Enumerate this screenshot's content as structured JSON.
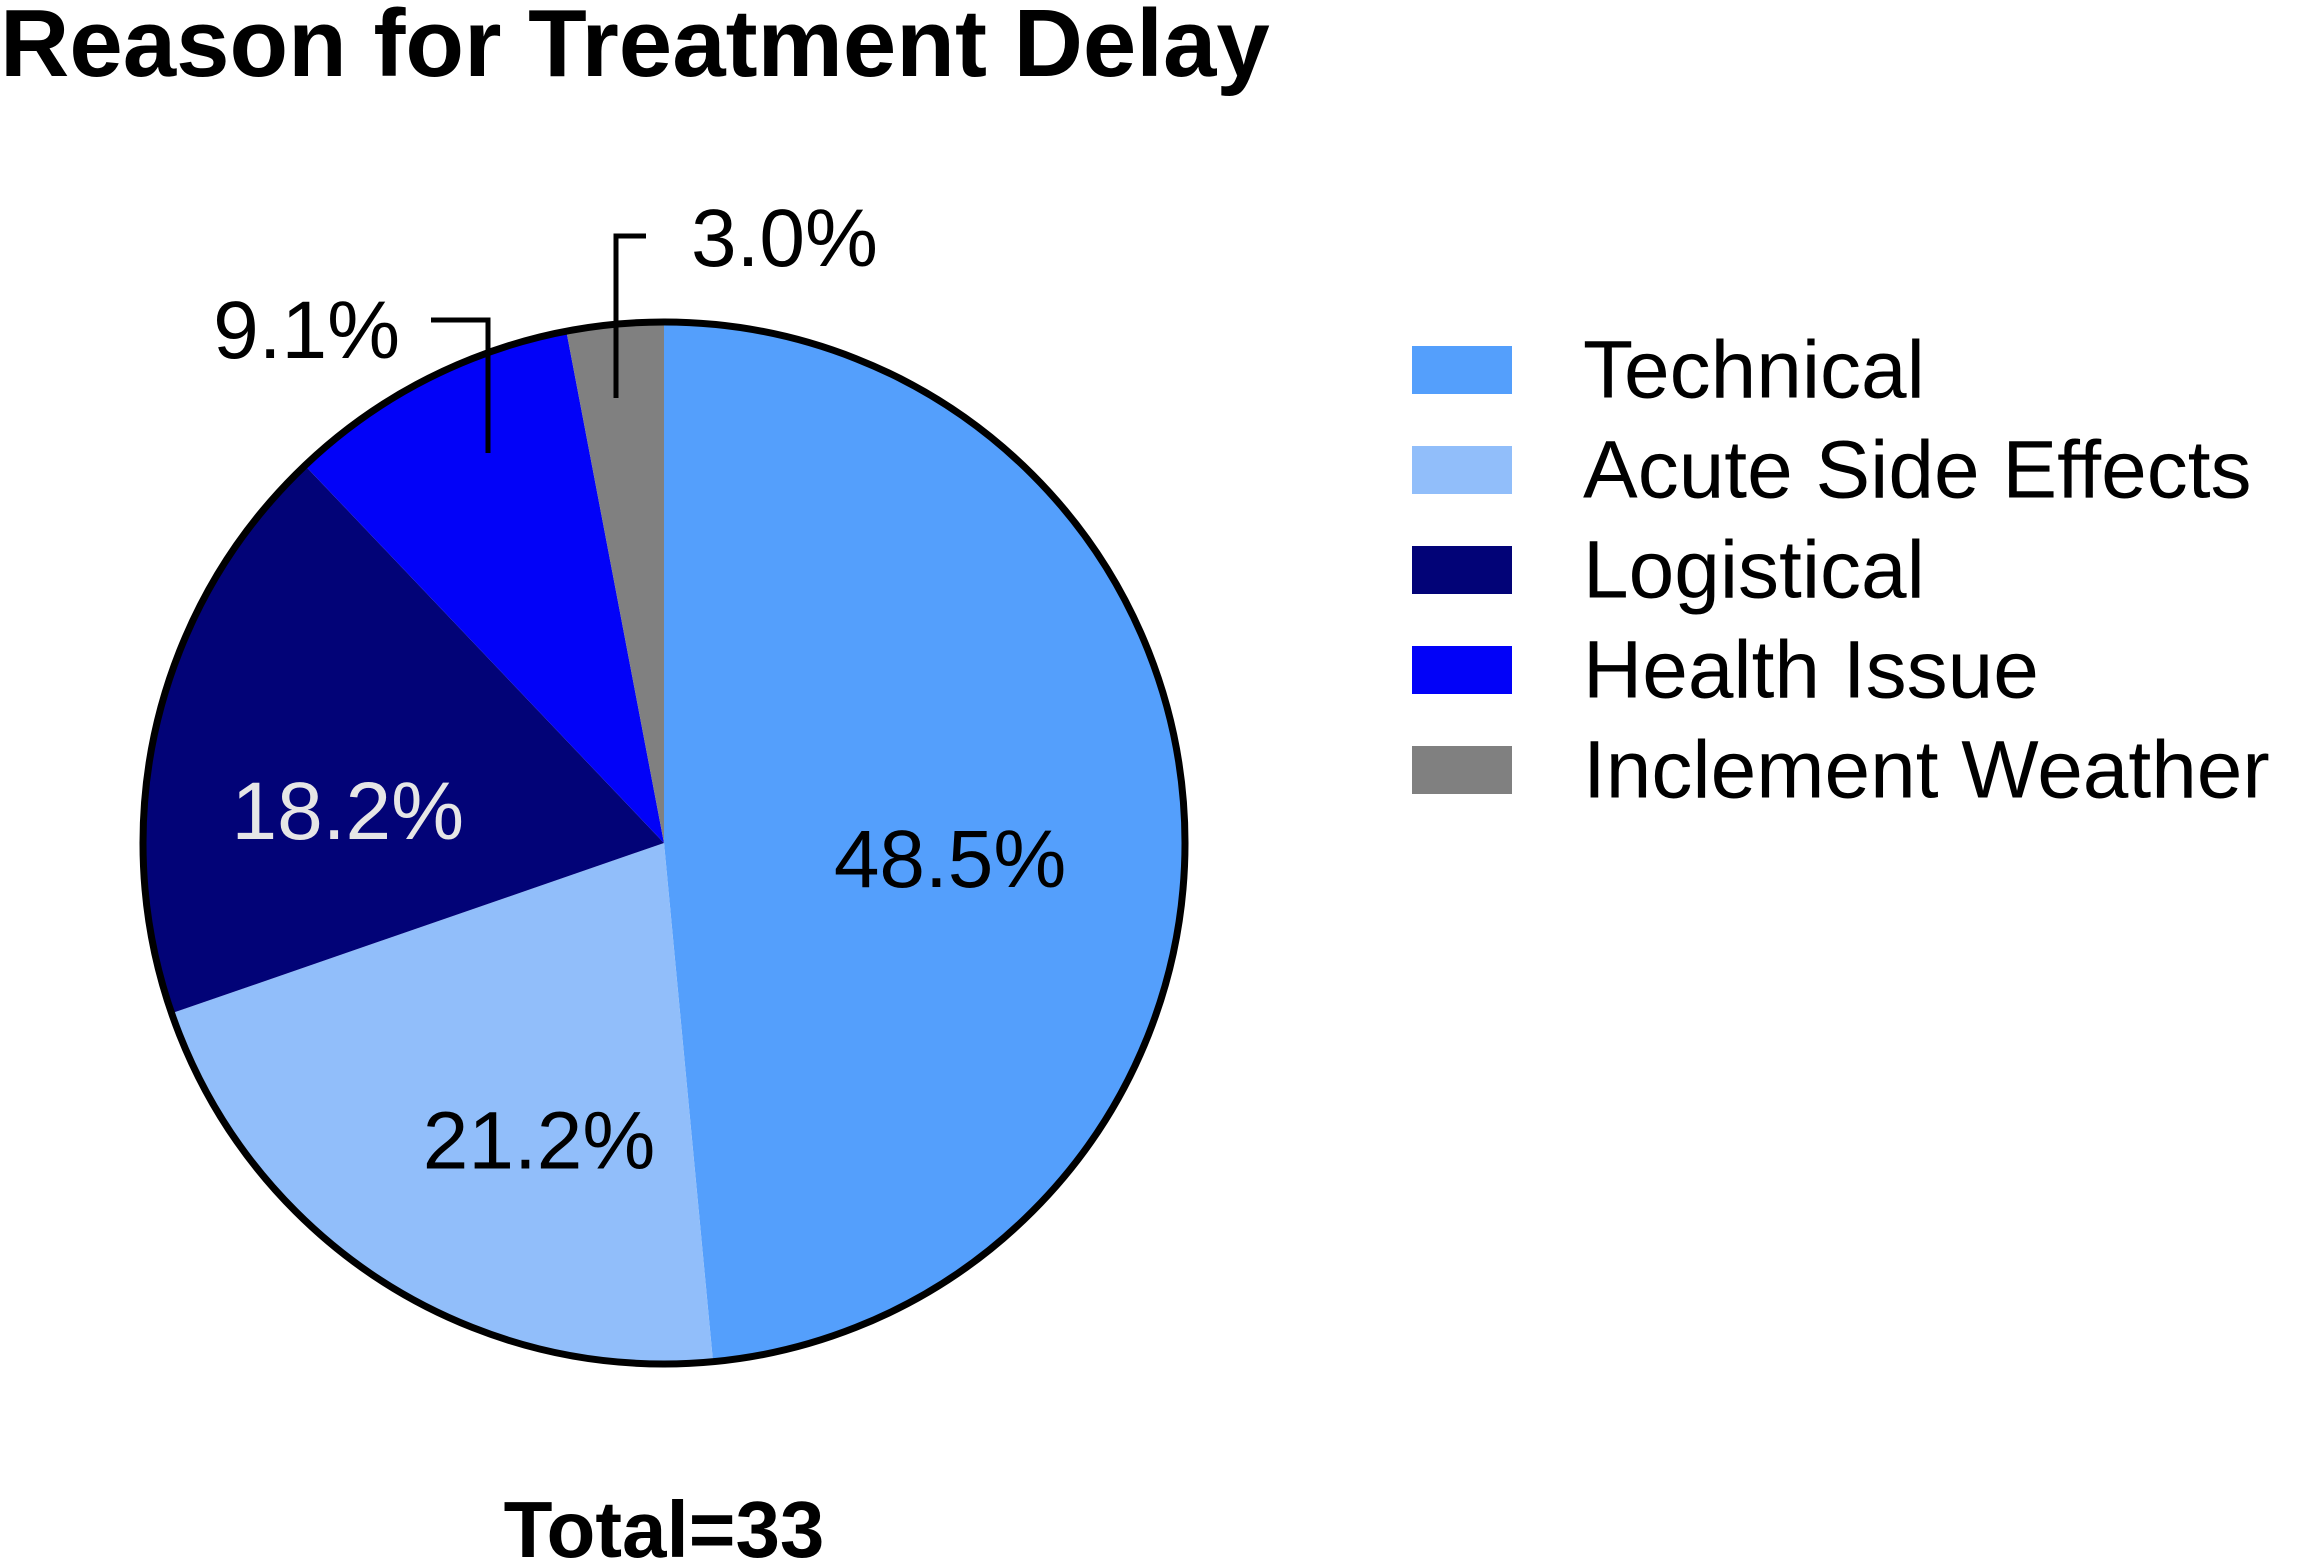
{
  "chart_data": {
    "type": "pie",
    "title": "Reason for Treatment Delay",
    "footnote": "Total=33",
    "categories": [
      "Technical",
      "Acute Side Effects",
      "Logistical",
      "Health Issue",
      "Inclement Weather"
    ],
    "values": [
      48.5,
      21.2,
      18.2,
      9.1,
      3.0
    ],
    "value_labels": [
      "48.5%",
      "21.2%",
      "18.2%",
      "9.1%",
      "3.0%"
    ],
    "colors": [
      "#549ffc",
      "#91befa",
      "#020377",
      "#0202f8",
      "#808080"
    ],
    "label_colors": [
      "#000000",
      "#000000",
      "#e6e6e6",
      "#000000",
      "#000000"
    ],
    "start_angle_deg": 0,
    "direction": "clockwise",
    "legend_position": "right"
  }
}
